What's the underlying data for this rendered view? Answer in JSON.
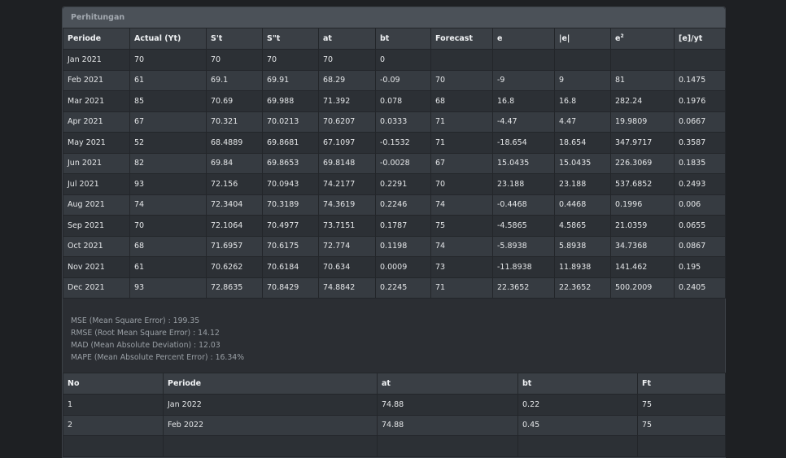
{
  "card": {
    "title": "Perhitungan"
  },
  "table1": {
    "headers": [
      "Periode",
      "Actual (Yt)",
      "S't",
      "S\"t",
      "at",
      "bt",
      "Forecast",
      "e",
      "|e|",
      "e²",
      "[e]/yt"
    ],
    "rows": [
      [
        "Jan 2021",
        "70",
        "70",
        "70",
        "70",
        "0",
        "",
        "",
        "",
        "",
        ""
      ],
      [
        "Feb 2021",
        "61",
        "69.1",
        "69.91",
        "68.29",
        "-0.09",
        "70",
        "-9",
        "9",
        "81",
        "0.1475"
      ],
      [
        "Mar 2021",
        "85",
        "70.69",
        "69.988",
        "71.392",
        "0.078",
        "68",
        "16.8",
        "16.8",
        "282.24",
        "0.1976"
      ],
      [
        "Apr 2021",
        "67",
        "70.321",
        "70.0213",
        "70.6207",
        "0.0333",
        "71",
        "-4.47",
        "4.47",
        "19.9809",
        "0.0667"
      ],
      [
        "May 2021",
        "52",
        "68.4889",
        "69.8681",
        "67.1097",
        "-0.1532",
        "71",
        "-18.654",
        "18.654",
        "347.9717",
        "0.3587"
      ],
      [
        "Jun 2021",
        "82",
        "69.84",
        "69.8653",
        "69.8148",
        "-0.0028",
        "67",
        "15.0435",
        "15.0435",
        "226.3069",
        "0.1835"
      ],
      [
        "Jul 2021",
        "93",
        "72.156",
        "70.0943",
        "74.2177",
        "0.2291",
        "70",
        "23.188",
        "23.188",
        "537.6852",
        "0.2493"
      ],
      [
        "Aug 2021",
        "74",
        "72.3404",
        "70.3189",
        "74.3619",
        "0.2246",
        "74",
        "-0.4468",
        "0.4468",
        "0.1996",
        "0.006"
      ],
      [
        "Sep 2021",
        "70",
        "72.1064",
        "70.4977",
        "73.7151",
        "0.1787",
        "75",
        "-4.5865",
        "4.5865",
        "21.0359",
        "0.0655"
      ],
      [
        "Oct 2021",
        "68",
        "71.6957",
        "70.6175",
        "72.774",
        "0.1198",
        "74",
        "-5.8938",
        "5.8938",
        "34.7368",
        "0.0867"
      ],
      [
        "Nov 2021",
        "61",
        "70.6262",
        "70.6184",
        "70.634",
        "0.0009",
        "73",
        "-11.8938",
        "11.8938",
        "141.462",
        "0.195"
      ],
      [
        "Dec 2021",
        "93",
        "72.8635",
        "70.8429",
        "74.8842",
        "0.2245",
        "71",
        "22.3652",
        "22.3652",
        "500.2009",
        "0.2405"
      ]
    ]
  },
  "summary": [
    "MSE (Mean Square Error) : 199.35",
    "RMSE (Root Mean Square Error) : 14.12",
    "MAD (Mean Absolute Deviation) : 12.03",
    "MAPE (Mean Absolute Percent Error) : 16.34%"
  ],
  "table2": {
    "headers": [
      "No",
      "Periode",
      "at",
      "bt",
      "Ft"
    ],
    "rows": [
      [
        "1",
        "Jan 2022",
        "74.88",
        "0.22",
        "75"
      ],
      [
        "2",
        "Feb 2022",
        "74.88",
        "0.45",
        "75"
      ],
      [
        "",
        "",
        "",
        "",
        ""
      ]
    ]
  }
}
